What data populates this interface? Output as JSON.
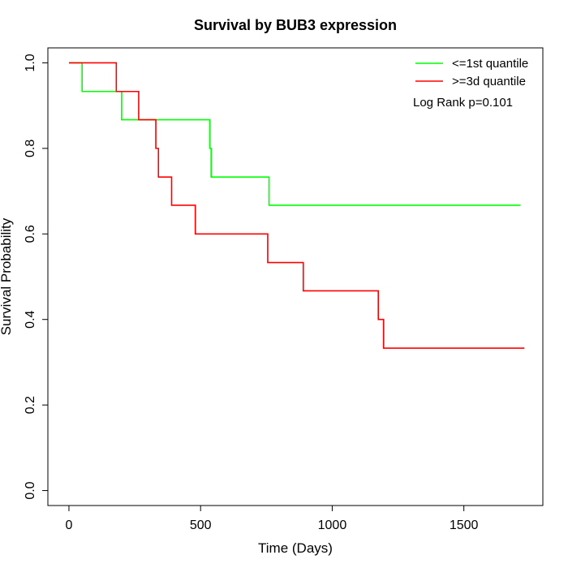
{
  "chart_data": {
    "type": "line",
    "title": "Survival by BUB3 expression",
    "xlabel": "Time (Days)",
    "ylabel": "Survival Probability",
    "xlim": [
      -80,
      1800
    ],
    "ylim": [
      -0.035,
      1.035
    ],
    "x_ticks": [
      0,
      500,
      1000,
      1500
    ],
    "y_ticks": [
      0.0,
      0.2,
      0.4,
      0.6,
      0.8,
      1.0
    ],
    "x_tick_labels": [
      "0",
      "500",
      "1000",
      "1500"
    ],
    "y_tick_labels": [
      "0.0",
      "0.2",
      "0.4",
      "0.6",
      "0.8",
      "1.0"
    ],
    "grid": false,
    "legend_position": "top-right",
    "annotation": "Log Rank p=0.101",
    "series": [
      {
        "name": "<=1st quantile",
        "color": "#00ff00",
        "step": true,
        "points": [
          [
            0,
            1.0
          ],
          [
            50,
            0.933
          ],
          [
            200,
            0.867
          ],
          [
            535,
            0.8
          ],
          [
            540,
            0.733
          ],
          [
            760,
            0.667
          ],
          [
            1715,
            0.667
          ]
        ]
      },
      {
        "name": ">=3d quantile",
        "color": "#ff0000",
        "step": true,
        "points": [
          [
            0,
            1.0
          ],
          [
            180,
            0.933
          ],
          [
            265,
            0.867
          ],
          [
            330,
            0.8
          ],
          [
            340,
            0.733
          ],
          [
            390,
            0.667
          ],
          [
            480,
            0.6
          ],
          [
            755,
            0.533
          ],
          [
            890,
            0.467
          ],
          [
            1175,
            0.4
          ],
          [
            1195,
            0.333
          ],
          [
            1730,
            0.333
          ]
        ]
      }
    ]
  }
}
